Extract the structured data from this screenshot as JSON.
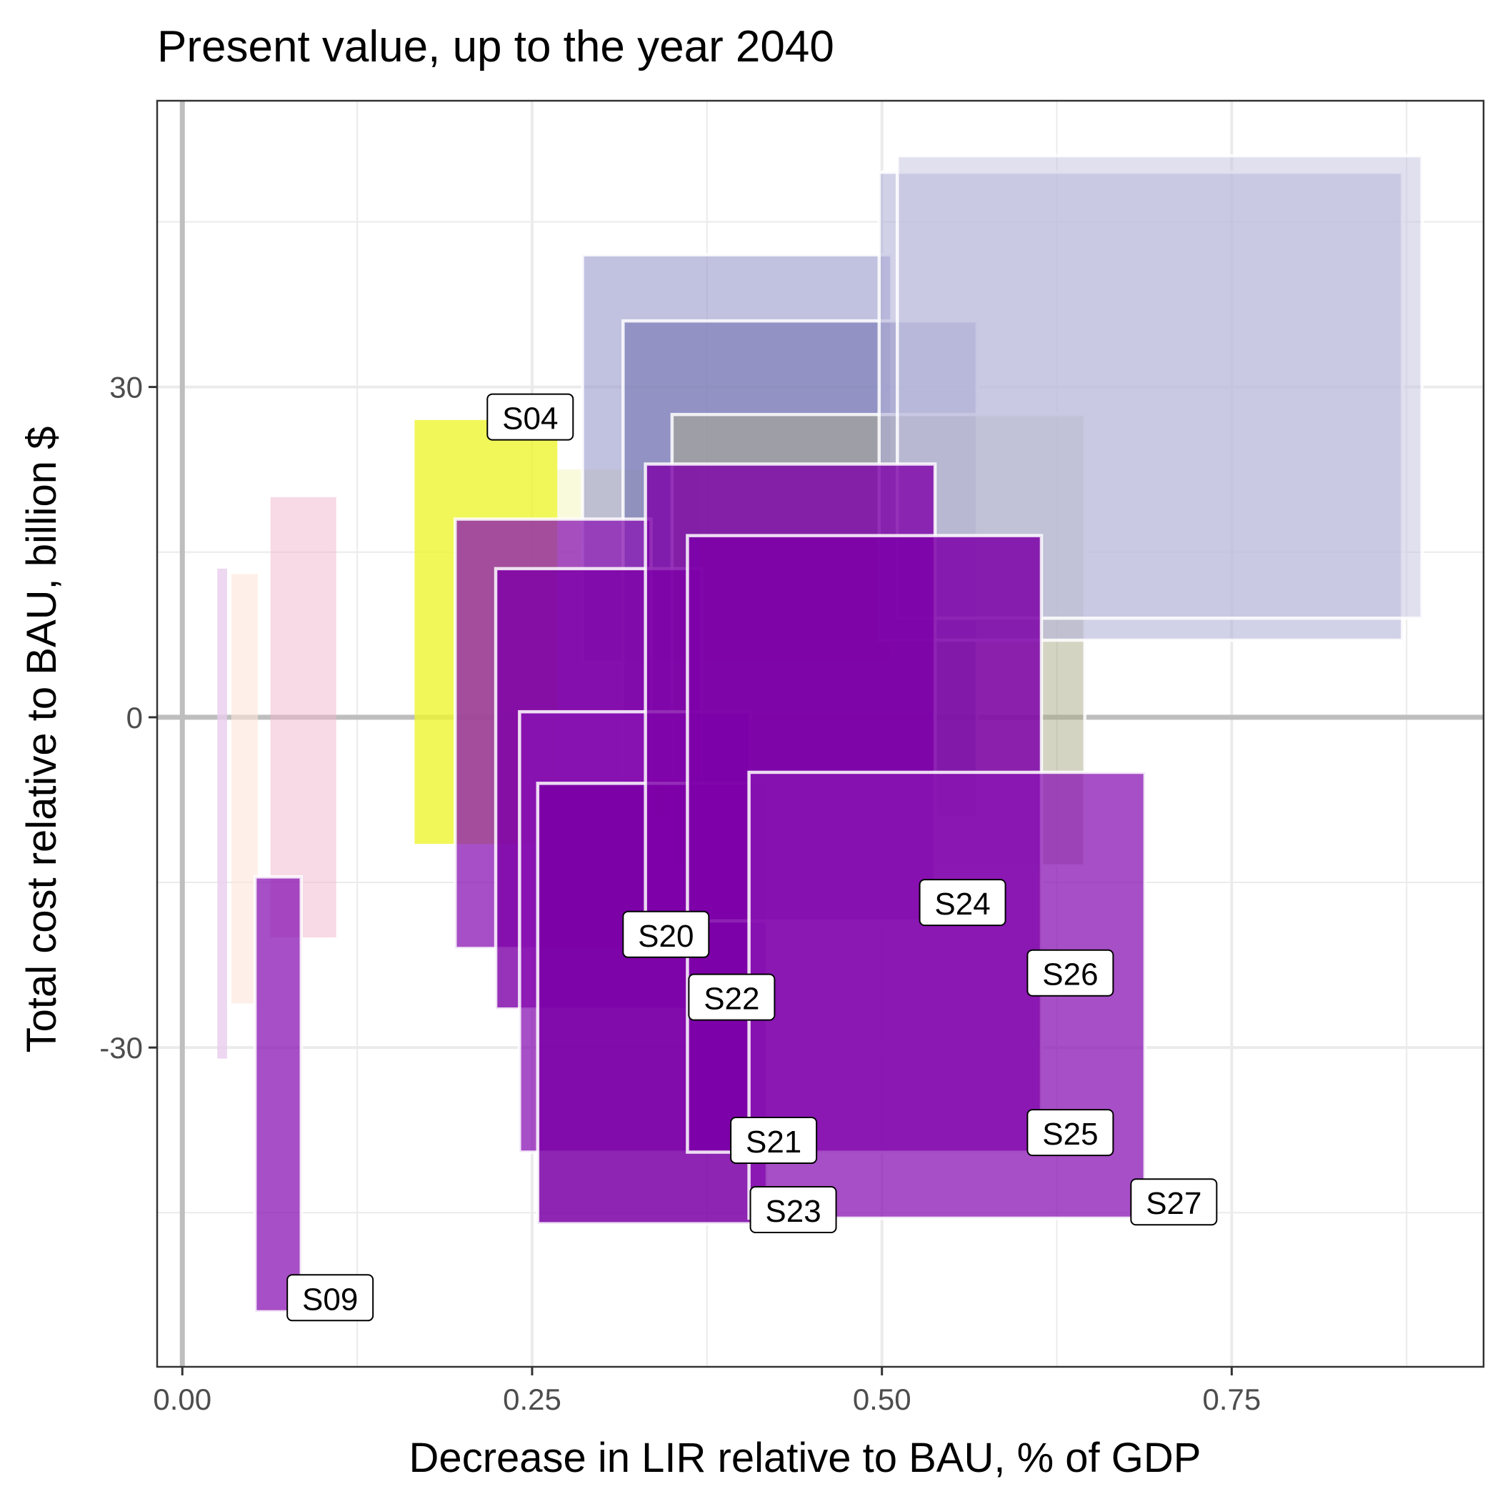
{
  "chart_data": {
    "type": "range-rectangles",
    "title": "Present value, up to the year 2040",
    "xlabel": "Decrease in LIR relative to BAU, % of GDP",
    "ylabel": "Total cost relative to BAU, billion $",
    "xlim": [
      -0.018,
      0.93
    ],
    "ylim": [
      -59,
      56
    ],
    "x_ticks": [
      {
        "value": 0.0,
        "label": "0.00"
      },
      {
        "value": 0.25,
        "label": "0.25"
      },
      {
        "value": 0.5,
        "label": "0.50"
      },
      {
        "value": 0.75,
        "label": "0.75"
      }
    ],
    "y_ticks": [
      {
        "value": -30,
        "label": "-30"
      },
      {
        "value": 0,
        "label": "0"
      },
      {
        "value": 30,
        "label": "30"
      }
    ],
    "x_minor": [
      0.125,
      0.375,
      0.625,
      0.875
    ],
    "y_minor": [
      -45,
      -15,
      15,
      45
    ],
    "grid": true,
    "zero_lines": true,
    "rectangles": [
      {
        "x": [
          0.025,
          0.032
        ],
        "y": [
          -31,
          13.5
        ],
        "fill": "#e9cdee",
        "opacity": 0.8,
        "outline": false
      },
      {
        "x": [
          0.035,
          0.054
        ],
        "y": [
          -26,
          13
        ],
        "fill": "#fde6d8",
        "opacity": 0.6,
        "outline": false
      },
      {
        "x": [
          0.063,
          0.11
        ],
        "y": [
          -20,
          20
        ],
        "fill": "#efb6cb",
        "opacity": 0.5,
        "outline": false
      },
      {
        "x": [
          0.052,
          0.085
        ],
        "y": [
          -54,
          -14.5
        ],
        "fill": "#8a14b3",
        "opacity": 0.75,
        "outline": true
      },
      {
        "x": [
          0.166,
          0.268
        ],
        "y": [
          -11.5,
          27
        ],
        "fill": "#eef530",
        "opacity": 0.8,
        "outline": false
      },
      {
        "x": [
          0.268,
          0.37
        ],
        "y": [
          -11,
          22.5
        ],
        "fill": "#f2f2b2",
        "opacity": 0.45,
        "outline": false
      },
      {
        "x": [
          0.286,
          0.507
        ],
        "y": [
          5,
          42
        ],
        "fill": "#9898cc",
        "opacity": 0.6,
        "outline": true
      },
      {
        "x": [
          0.315,
          0.568
        ],
        "y": [
          -9,
          36
        ],
        "fill": "#7373b0",
        "opacity": 0.6,
        "outline": true
      },
      {
        "x": [
          0.35,
          0.645
        ],
        "y": [
          -13.5,
          27.5
        ],
        "fill": "#aaaa88",
        "opacity": 0.5,
        "outline": true
      },
      {
        "x": [
          0.498,
          0.872
        ],
        "y": [
          7,
          49.5
        ],
        "fill": "#b3b3d9",
        "opacity": 0.6,
        "outline": true
      },
      {
        "x": [
          0.511,
          0.886
        ],
        "y": [
          9,
          51
        ],
        "fill": "#c2c2e0",
        "opacity": 0.5,
        "outline": true
      },
      {
        "x": [
          0.195,
          0.335
        ],
        "y": [
          -21,
          18
        ],
        "fill": "#8a14b3",
        "opacity": 0.75,
        "outline": true
      },
      {
        "x": [
          0.224,
          0.371
        ],
        "y": [
          -26.5,
          13.5
        ],
        "fill": "#7d00a8",
        "opacity": 0.8,
        "outline": true
      },
      {
        "x": [
          0.241,
          0.406
        ],
        "y": [
          -39.5,
          0.5
        ],
        "fill": "#8a14b3",
        "opacity": 0.75,
        "outline": true
      },
      {
        "x": [
          0.254,
          0.418
        ],
        "y": [
          -46,
          -6
        ],
        "fill": "#7a00a6",
        "opacity": 0.85,
        "outline": true
      },
      {
        "x": [
          0.331,
          0.538
        ],
        "y": [
          -18.5,
          23
        ],
        "fill": "#7d00a8",
        "opacity": 0.8,
        "outline": true
      },
      {
        "x": [
          0.361,
          0.614
        ],
        "y": [
          -39.5,
          16.5
        ],
        "fill": "#7d00a8",
        "opacity": 0.85,
        "outline": true
      },
      {
        "x": [
          0.405,
          0.688
        ],
        "y": [
          -45.5,
          -5
        ],
        "fill": "#8a14b3",
        "opacity": 0.75,
        "outline": true
      }
    ],
    "labels": [
      {
        "text": "S04",
        "x": 0.218,
        "y": 25.2
      },
      {
        "text": "S09",
        "x": 0.075,
        "y": -54.8
      },
      {
        "text": "S20",
        "x": 0.315,
        "y": -21.8
      },
      {
        "text": "S21",
        "x": 0.392,
        "y": -40.5
      },
      {
        "text": "S22",
        "x": 0.362,
        "y": -27.5
      },
      {
        "text": "S23",
        "x": 0.406,
        "y": -46.8
      },
      {
        "text": "S24",
        "x": 0.527,
        "y": -18.9
      },
      {
        "text": "S25",
        "x": 0.604,
        "y": -39.8
      },
      {
        "text": "S26",
        "x": 0.604,
        "y": -25.3
      },
      {
        "text": "S27",
        "x": 0.678,
        "y": -46.1
      }
    ]
  }
}
